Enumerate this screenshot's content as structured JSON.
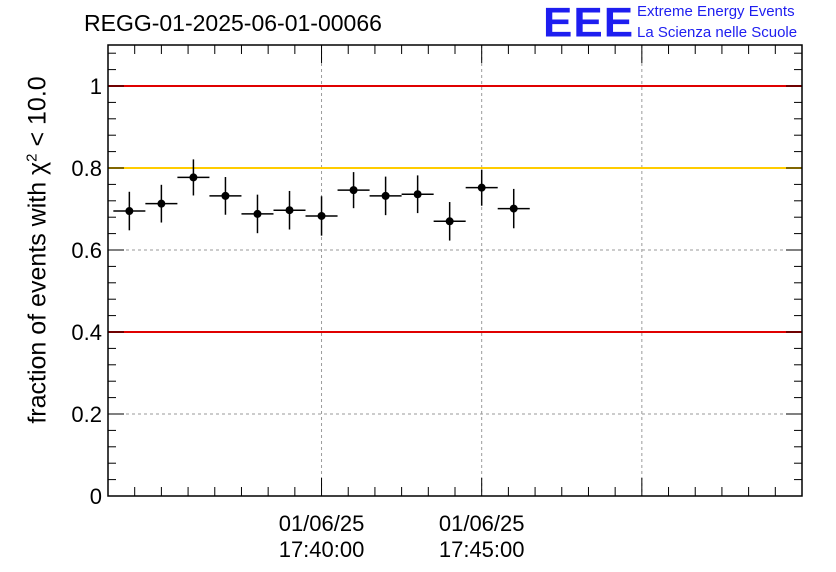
{
  "header": {
    "title": "REGG-01-2025-06-01-00066"
  },
  "logo": {
    "mark": "EEE",
    "line1": "Extreme Energy Events",
    "line2": "La Scienza nelle Scuole",
    "color": "#1e1ef0"
  },
  "chart_data": {
    "type": "scatter",
    "title": "REGG-01-2025-06-01-00066",
    "ylabel_prefix": "fraction of events with ",
    "ylabel_symbol": "χ",
    "ylabel_power": "2",
    "ylabel_suffix": " < 10.0",
    "xlabel": "",
    "x_unit": "seconds after 01/06/25 17:40:00",
    "xlim": [
      -400,
      900
    ],
    "ylim": [
      0,
      1.1
    ],
    "y_ticks": [
      0,
      0.2,
      0.4,
      0.6,
      0.8,
      1
    ],
    "y_tick_labels": [
      "0",
      "0.2",
      "0.4",
      "0.6",
      "0.8",
      "1"
    ],
    "x_major_ticks": [
      0,
      300,
      600
    ],
    "x_minor_ticks": [
      -350,
      -300,
      -250,
      -200,
      -150,
      -100,
      -50,
      50,
      100,
      150,
      200,
      250,
      350,
      400,
      450,
      500,
      550,
      650,
      700,
      750,
      800,
      850
    ],
    "x_tick_labels": [
      {
        "x": 0,
        "date": "01/06/25",
        "time": "17:40:00"
      },
      {
        "x": 300,
        "date": "01/06/25",
        "time": "17:45:00"
      }
    ],
    "grid": true,
    "reference_lines": [
      {
        "y": 1.0,
        "color": "#e00000"
      },
      {
        "y": 0.8,
        "color": "#ffcc00"
      },
      {
        "y": 0.4,
        "color": "#e00000"
      }
    ],
    "bin_width": 60,
    "series": [
      {
        "name": "fraction",
        "x": [
          -360,
          -300,
          -240,
          -180,
          -120,
          -60,
          0,
          60,
          120,
          180,
          240,
          300,
          360
        ],
        "y": [
          0.695,
          0.713,
          0.777,
          0.732,
          0.688,
          0.697,
          0.683,
          0.746,
          0.732,
          0.736,
          0.67,
          0.752,
          0.701
        ],
        "yerr": [
          0.047,
          0.046,
          0.044,
          0.046,
          0.047,
          0.047,
          0.048,
          0.044,
          0.047,
          0.046,
          0.047,
          0.044,
          0.048
        ]
      }
    ]
  }
}
